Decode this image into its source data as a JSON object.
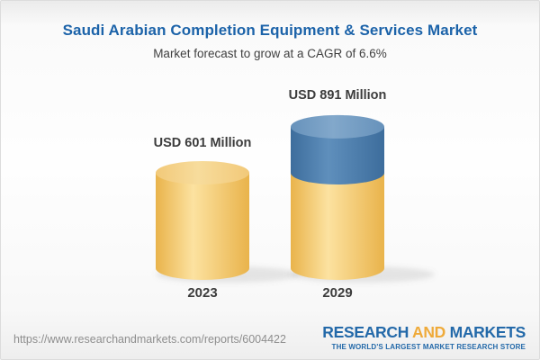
{
  "header": {
    "title": "Saudi Arabian Completion Equipment & Services Market",
    "subtitle": "Market forecast to grow at a CAGR of 6.6%"
  },
  "chart_data": {
    "type": "bar",
    "style": "3d-cylinder",
    "title": "Saudi Arabian Completion Equipment & Services Market",
    "subtitle": "Market forecast to grow at a CAGR of 6.6%",
    "cagr": "6.6%",
    "unit": "USD Million",
    "categories": [
      "2023",
      "2029"
    ],
    "values": [
      601,
      891
    ],
    "legend": "none",
    "grid": false,
    "bars": [
      {
        "year": "2023",
        "value": 601,
        "value_label": "USD 601 Million",
        "segments": [
          {
            "name": "base",
            "color": "gold",
            "value": 601
          }
        ]
      },
      {
        "year": "2029",
        "value": 891,
        "value_label": "USD 891 Million",
        "segments": [
          {
            "name": "base",
            "color": "gold",
            "value": 601
          },
          {
            "name": "growth",
            "color": "blue",
            "value": 290
          }
        ]
      }
    ],
    "colors": {
      "gold_edge": "#e9b34b",
      "gold_mid": "#fce2a0",
      "gold_top_edge": "#f2c979",
      "gold_top_mid": "#f7dc9c",
      "blue_edge": "#3d6d9c",
      "blue_mid": "#5f8fbc",
      "blue_top_edge": "#6792bb",
      "blue_top_mid": "#82a8cb",
      "title_blue": "#1c63a9",
      "text_dark": "#3c3c3c"
    }
  },
  "footer": {
    "url": "https://www.researchandmarkets.com/reports/6004422",
    "logo": {
      "part1": "RESEARCH",
      "part2": "AND",
      "part3": "MARKETS",
      "tagline": "THE WORLD'S LARGEST MARKET RESEARCH STORE"
    }
  }
}
